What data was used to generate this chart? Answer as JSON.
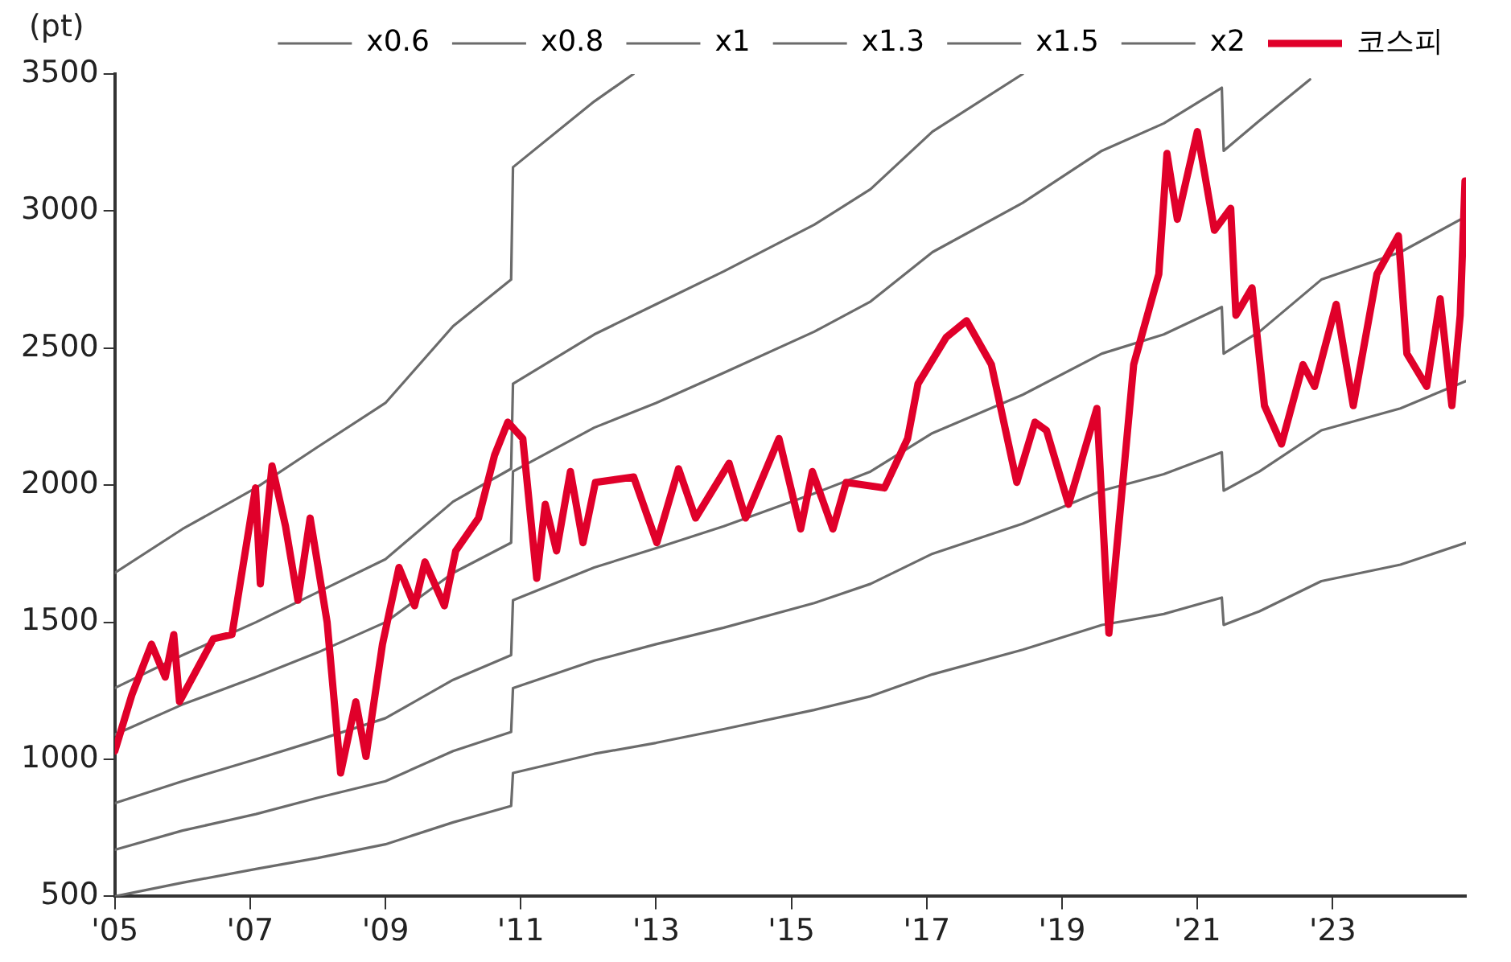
{
  "chart_data": {
    "type": "line",
    "ylabel": "(pt)",
    "legend": "top",
    "grid": false,
    "marker": "none",
    "line_style": "solid",
    "xlim": [
      "2005-07-01",
      "2025-06-20"
    ],
    "xticks": [
      {
        "value": "2005-07-01",
        "label": "'05"
      },
      {
        "value": "2007-07-01",
        "label": "'07"
      },
      {
        "value": "2009-07-01",
        "label": "'09"
      },
      {
        "value": "2011-07-01",
        "label": "'11"
      },
      {
        "value": "2013-07-01",
        "label": "'13"
      },
      {
        "value": "2015-07-01",
        "label": "'15"
      },
      {
        "value": "2017-07-01",
        "label": "'17"
      },
      {
        "value": "2019-07-01",
        "label": "'19"
      },
      {
        "value": "2021-07-01",
        "label": "'21"
      },
      {
        "value": "2023-07-01",
        "label": "'23"
      }
    ],
    "ylim": [
      500,
      3500
    ],
    "yticks": [
      500,
      1000,
      1500,
      2000,
      2500,
      3000,
      3500
    ],
    "series": [
      {
        "name": "x0.6",
        "color": "#6b6b6b",
        "x": [
          "2005-07-01",
          "2006-07-01",
          "2007-08-01",
          "2008-07-01",
          "2009-07-01",
          "2010-07-01",
          "2011-05-10",
          "2011-05-20",
          "2012-08-01",
          "2013-07-01",
          "2014-07-01",
          "2015-11-01",
          "2016-09-01",
          "2017-08-01",
          "2018-12-01",
          "2020-02-01",
          "2021-01-01",
          "2021-11-10",
          "2021-11-20",
          "2022-06-01",
          "2023-05-01",
          "2024-07-01",
          "2025-06-20"
        ],
        "values": [
          500,
          550,
          600,
          640,
          690,
          770,
          830,
          950,
          1020,
          1060,
          1110,
          1180,
          1230,
          1310,
          1400,
          1490,
          1530,
          1590,
          1490,
          1540,
          1650,
          1710,
          1790
        ]
      },
      {
        "name": "x0.8",
        "color": "#6b6b6b",
        "x": [
          "2005-07-01",
          "2006-07-01",
          "2007-08-01",
          "2008-07-01",
          "2009-07-01",
          "2010-07-01",
          "2011-05-10",
          "2011-05-20",
          "2012-08-01",
          "2013-07-01",
          "2014-07-01",
          "2015-11-01",
          "2016-09-01",
          "2017-08-01",
          "2018-12-01",
          "2020-02-01",
          "2021-01-01",
          "2021-11-10",
          "2021-11-20",
          "2022-06-01",
          "2023-05-01",
          "2024-07-01",
          "2025-06-20"
        ],
        "values": [
          670,
          740,
          800,
          860,
          920,
          1030,
          1100,
          1260,
          1360,
          1420,
          1480,
          1570,
          1640,
          1750,
          1860,
          1980,
          2040,
          2120,
          1980,
          2050,
          2200,
          2280,
          2380
        ]
      },
      {
        "name": "x1",
        "color": "#6b6b6b",
        "x": [
          "2005-07-01",
          "2006-07-01",
          "2007-08-01",
          "2008-07-01",
          "2009-07-01",
          "2010-07-01",
          "2011-05-10",
          "2011-05-20",
          "2012-08-01",
          "2013-07-01",
          "2014-07-01",
          "2015-11-01",
          "2016-09-01",
          "2017-08-01",
          "2018-12-01",
          "2020-02-01",
          "2021-01-01",
          "2021-11-10",
          "2021-11-20",
          "2022-06-01",
          "2023-05-01",
          "2024-07-01",
          "2025-06-20"
        ],
        "values": [
          840,
          920,
          1000,
          1070,
          1150,
          1290,
          1380,
          1580,
          1700,
          1770,
          1850,
          1970,
          2050,
          2190,
          2330,
          2480,
          2550,
          2650,
          2480,
          2560,
          2750,
          2850,
          2980
        ]
      },
      {
        "name": "x1.3",
        "color": "#6b6b6b",
        "x": [
          "2005-07-01",
          "2006-07-01",
          "2007-08-01",
          "2008-07-01",
          "2009-07-01",
          "2010-07-01",
          "2011-05-10",
          "2011-05-20",
          "2012-08-01",
          "2013-07-01",
          "2014-07-01",
          "2015-11-01",
          "2016-09-01",
          "2017-08-01",
          "2018-12-01",
          "2020-02-01",
          "2021-01-01",
          "2021-11-10",
          "2021-11-20",
          "2022-06-01",
          "2023-03-01"
        ],
        "values": [
          1090,
          1200,
          1300,
          1390,
          1500,
          1680,
          1790,
          2050,
          2210,
          2300,
          2410,
          2560,
          2670,
          2850,
          3030,
          3220,
          3320,
          3450,
          3220,
          3330,
          3480
        ]
      },
      {
        "name": "x1.5",
        "color": "#6b6b6b",
        "x": [
          "2005-07-01",
          "2006-07-01",
          "2007-08-01",
          "2008-07-01",
          "2009-07-01",
          "2010-07-01",
          "2011-05-10",
          "2011-05-20",
          "2012-08-01",
          "2013-07-01",
          "2014-07-01",
          "2015-11-01",
          "2016-09-01",
          "2017-08-01",
          "2018-12-01"
        ],
        "values": [
          1260,
          1380,
          1500,
          1610,
          1730,
          1940,
          2060,
          2370,
          2550,
          2660,
          2780,
          2950,
          3080,
          3290,
          3500
        ]
      },
      {
        "name": "x2",
        "color": "#6b6b6b",
        "x": [
          "2005-07-01",
          "2006-07-01",
          "2007-08-01",
          "2008-07-01",
          "2009-07-01",
          "2010-07-01",
          "2011-05-10",
          "2011-05-20",
          "2012-08-01",
          "2013-03-01"
        ],
        "values": [
          1680,
          1840,
          1990,
          2140,
          2300,
          2580,
          2750,
          3160,
          3400,
          3500
        ]
      },
      {
        "name": "코스피",
        "color": "#e0002a",
        "x": [
          "2005-07-01",
          "2005-10-01",
          "2006-01-15",
          "2006-03-30",
          "2006-05-15",
          "2006-06-15",
          "2006-12-15",
          "2007-03-25",
          "2007-07-30",
          "2007-08-25",
          "2007-10-27",
          "2008-01-08",
          "2008-03-15",
          "2008-05-20",
          "2008-08-20",
          "2008-11-01",
          "2009-01-22",
          "2009-03-18",
          "2009-06-15",
          "2009-09-12",
          "2009-12-05",
          "2010-01-30",
          "2010-05-15",
          "2010-07-15",
          "2010-11-15",
          "2011-02-10",
          "2011-04-22",
          "2011-07-12",
          "2011-09-25",
          "2011-11-10",
          "2012-01-10",
          "2012-03-25",
          "2012-06-01",
          "2012-08-07",
          "2013-03-02",
          "2013-07-05",
          "2013-10-30",
          "2014-01-30",
          "2014-07-30",
          "2014-10-27",
          "2015-04-25",
          "2015-08-20",
          "2015-10-22",
          "2016-02-10",
          "2016-04-22",
          "2016-11-15",
          "2017-03-20",
          "2017-05-15",
          "2017-10-15",
          "2018-02-01",
          "2018-06-15",
          "2018-10-30",
          "2019-02-05",
          "2019-04-08",
          "2019-08-05",
          "2020-01-05",
          "2020-03-10",
          "2020-07-22",
          "2020-12-05",
          "2021-01-18",
          "2021-03-15",
          "2021-07-01",
          "2021-10-01",
          "2021-12-28",
          "2022-01-25",
          "2022-04-22",
          "2022-06-28",
          "2022-09-28",
          "2023-01-22",
          "2023-03-25",
          "2023-07-20",
          "2023-10-20",
          "2024-02-25",
          "2024-06-20",
          "2024-08-05",
          "2024-11-20",
          "2025-02-01",
          "2025-04-05",
          "2025-05-20",
          "2025-06-15"
        ],
        "values": [
          1030,
          1235,
          1420,
          1300,
          1455,
          1210,
          1440,
          1455,
          1990,
          1640,
          2070,
          1850,
          1580,
          1880,
          1500,
          950,
          1210,
          1010,
          1420,
          1700,
          1560,
          1720,
          1560,
          1760,
          1880,
          2110,
          2230,
          2170,
          1660,
          1930,
          1760,
          2050,
          1790,
          2010,
          2030,
          1790,
          2060,
          1880,
          2080,
          1880,
          2170,
          1840,
          2050,
          1840,
          2010,
          1990,
          2170,
          2370,
          2540,
          2600,
          2440,
          2010,
          2230,
          2200,
          1930,
          2280,
          1460,
          2440,
          2770,
          3210,
          2970,
          3290,
          2930,
          3010,
          2620,
          2720,
          2290,
          2150,
          2440,
          2360,
          2660,
          2290,
          2770,
          2910,
          2480,
          2360,
          2680,
          2290,
          2620,
          3110
        ]
      }
    ]
  }
}
